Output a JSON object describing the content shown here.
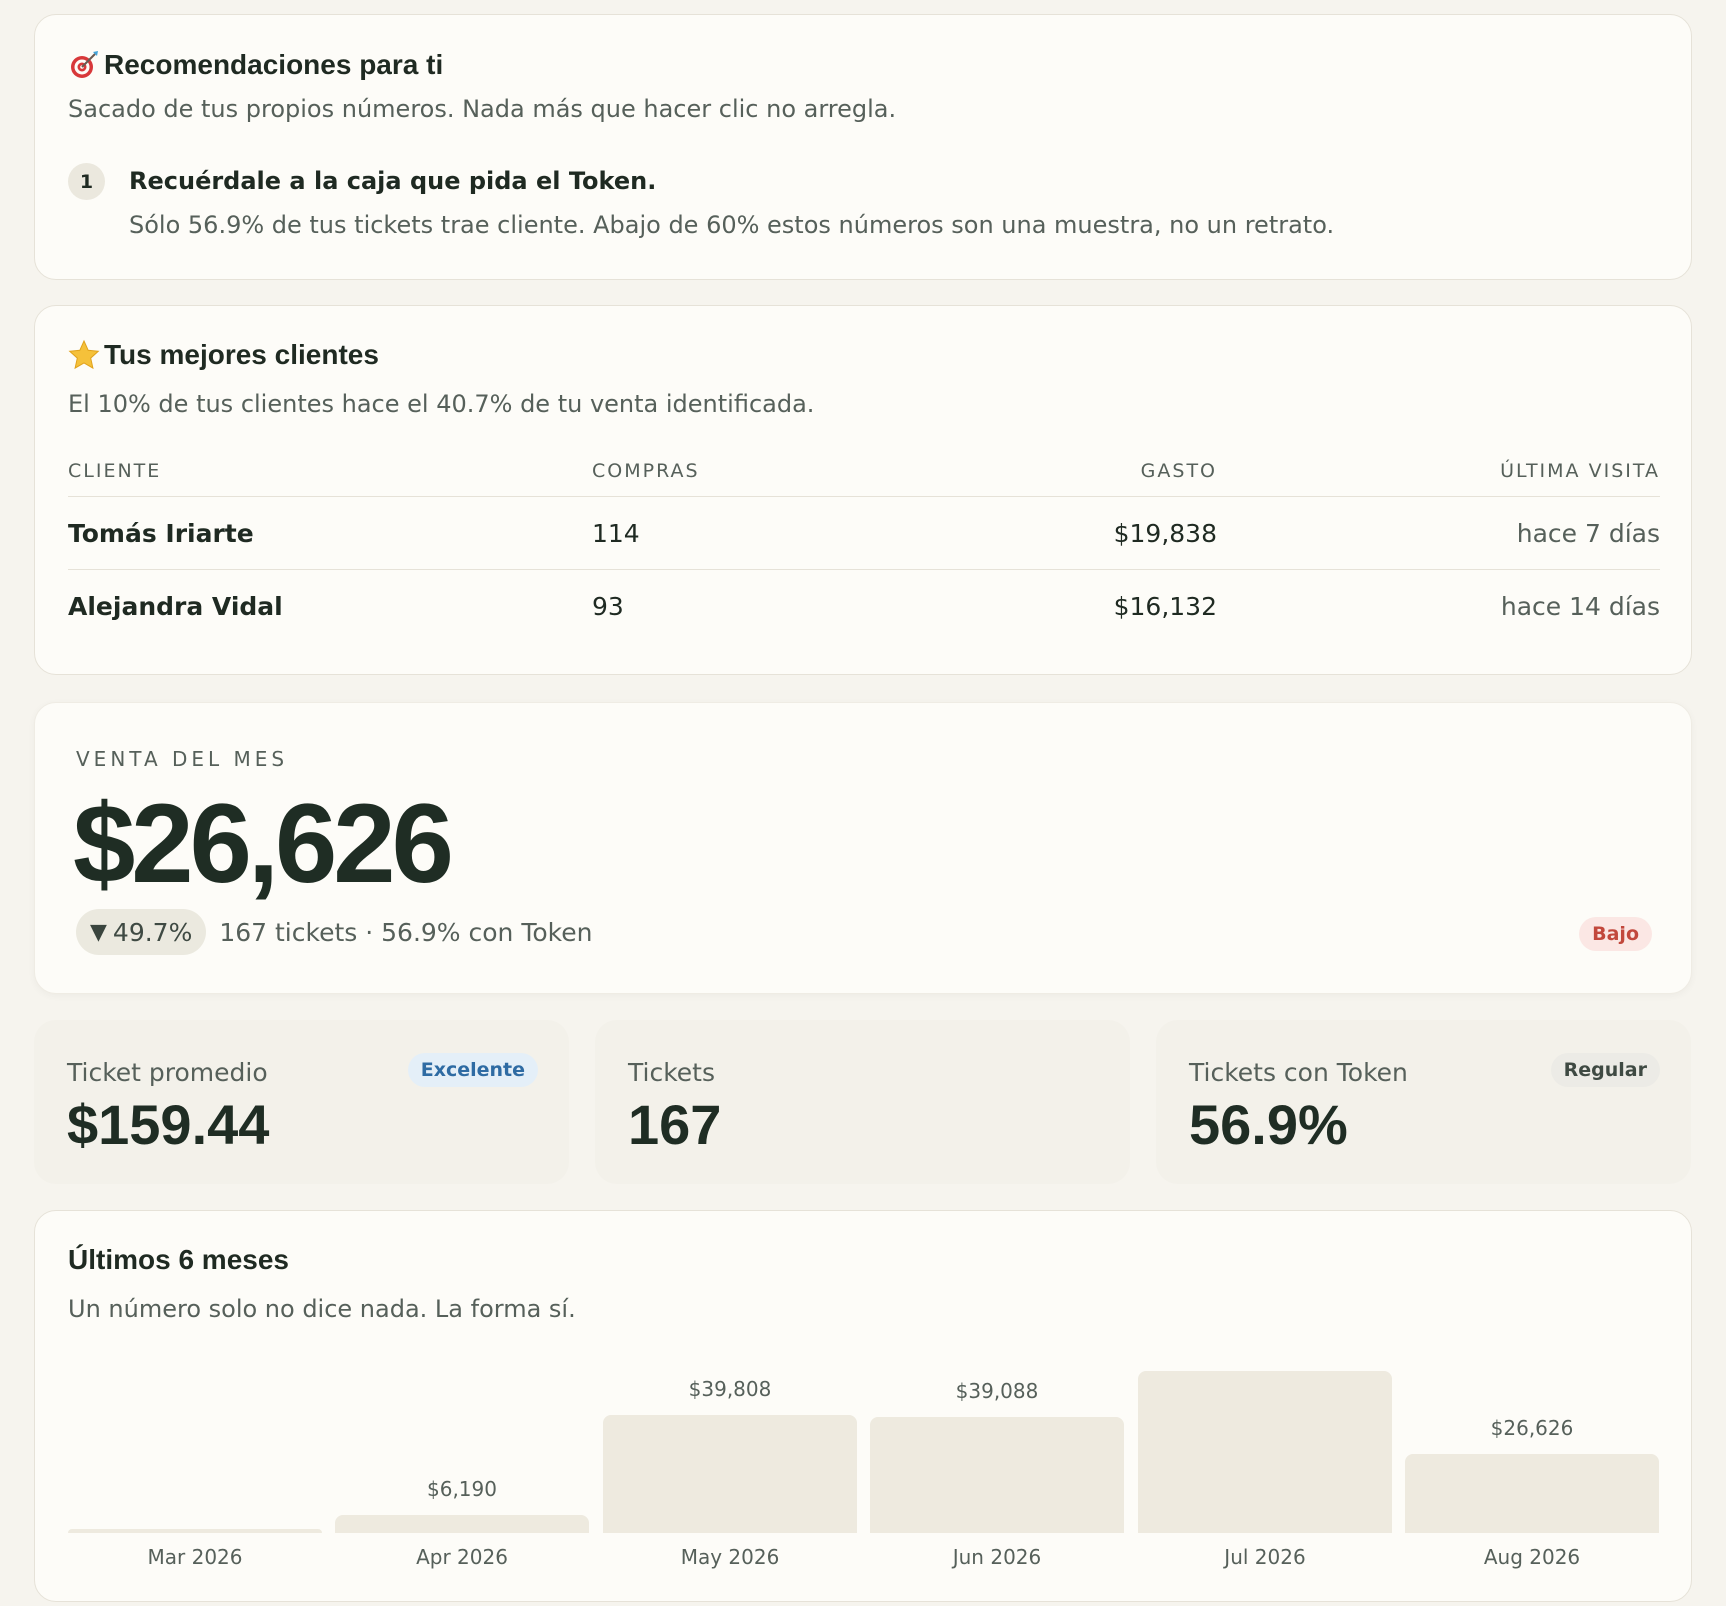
{
  "recommendations": {
    "title": "Recomendaciones para ti",
    "subtitle": "Sacado de tus propios números. Nada más que hacer clic no arregla.",
    "items": [
      {
        "number": "1",
        "title": "Recuérdale a la caja que pida el Token.",
        "body": "Sólo 56.9% de tus tickets trae cliente. Abajo de 60% estos números son una muestra, no un retrato."
      }
    ]
  },
  "top_clients": {
    "title": "Tus mejores clientes",
    "subtitle": "El 10% de tus clientes hace el 40.7% de tu venta identificada.",
    "columns": [
      "CLIENTE",
      "COMPRAS",
      "GASTO",
      "ÚLTIMA VISITA"
    ],
    "rows": [
      {
        "name": "Tomás Iriarte",
        "purchases": "114",
        "spend": "$19,838",
        "last_visit": "hace 7 días"
      },
      {
        "name": "Alejandra Vidal",
        "purchases": "93",
        "spend": "$16,132",
        "last_visit": "hace 14 días"
      }
    ]
  },
  "month_sales": {
    "label": "VENTA DEL MES",
    "value": "$26,626",
    "delta": "49.7%",
    "delta_direction": "down",
    "meta": "167 tickets · 56.9% con Token",
    "badge": "Bajo"
  },
  "kpis": [
    {
      "label": "Ticket promedio",
      "value": "$159.44",
      "badge": "Excelente"
    },
    {
      "label": "Tickets",
      "value": "167"
    },
    {
      "label": "Tickets con Token",
      "value": "56.9%",
      "badge": "Regular"
    }
  ],
  "trend": {
    "title": "Últimos 6 meses",
    "subtitle": "Un número solo no dice nada. La forma sí."
  },
  "chart_data": {
    "type": "bar",
    "title": "Últimos 6 meses",
    "categories": [
      "Mar 2026",
      "Apr 2026",
      "May 2026",
      "Jun 2026",
      "Jul 2026",
      "Aug 2026"
    ],
    "values": [
      1500,
      6190,
      39808,
      39088,
      54500,
      26626
    ],
    "value_labels": [
      "",
      "$6,190",
      "$39,808",
      "$39,088",
      "",
      "$26,626"
    ],
    "xlabel": "",
    "ylabel": "",
    "ylim": [
      0,
      54500
    ],
    "grid": false
  },
  "colors": {
    "background": "#f6f4ee",
    "card": "#fdfcf8",
    "text": "#1f2a22",
    "muted": "#56605a",
    "bar": "#eeeadf",
    "badge_low_bg": "#fbe7e4",
    "badge_low_text": "#c2483c",
    "badge_good_bg": "#e4eff8",
    "badge_good_text": "#2e6ba3"
  },
  "icons": {
    "recommendations": "target-icon",
    "top_clients": "star-icon",
    "delta": "triangle-down-icon"
  }
}
